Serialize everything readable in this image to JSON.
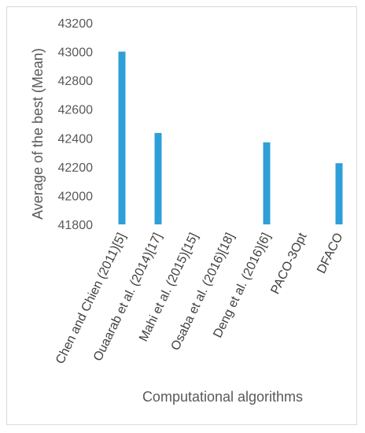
{
  "chart_data": {
    "type": "bar",
    "categories": [
      "Chen and Chien (2011)[5]",
      "Ouaarab et al. (2014)[17]",
      "Mahi et al. (2015)[15]",
      "Osaba et al. (2016)[18]",
      "Deng et al. (2016)[6]",
      "PACO-3Opt",
      "DFACO"
    ],
    "values": [
      43000,
      42435,
      null,
      null,
      42370,
      null,
      42225
    ],
    "ylabel": "Average of the best  (Mean)",
    "xlabel": "Computational algorithms",
    "ylim": [
      41800,
      43200
    ],
    "yticks": [
      41800,
      42000,
      42200,
      42400,
      42600,
      42800,
      43000,
      43200
    ],
    "bar_color": "#2e9fd8",
    "grid": false,
    "legend": "none"
  }
}
